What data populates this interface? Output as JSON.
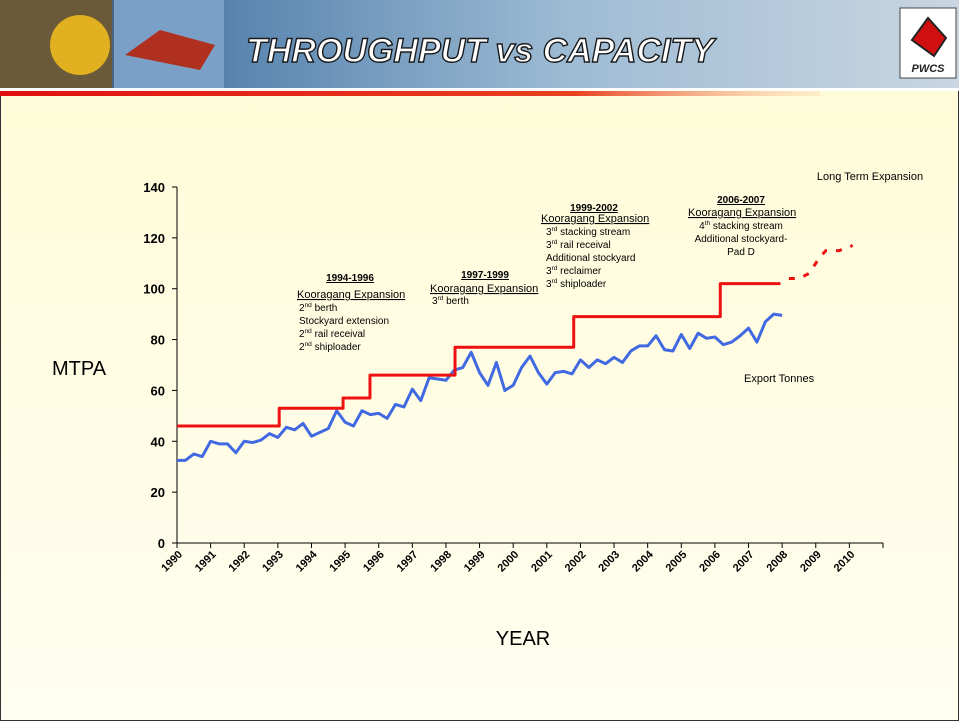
{
  "header": {
    "title": "THROUGHPUT vs CAPACITY",
    "logo": "PWCS"
  },
  "chart_data": {
    "type": "line",
    "ylabel": "MTPA",
    "xlabel": "YEAR",
    "xlim": [
      1990,
      2011
    ],
    "ylim": [
      0,
      140
    ],
    "xticks": [
      1990,
      1991,
      1992,
      1993,
      1994,
      1995,
      1996,
      1997,
      1998,
      1999,
      2000,
      2001,
      2002,
      2003,
      2004,
      2005,
      2006,
      2007,
      2008,
      2009,
      2010
    ],
    "yticks": [
      0,
      20,
      40,
      60,
      80,
      100,
      120,
      140
    ],
    "grid": false,
    "series": [
      {
        "name": "Export Tonnes",
        "color": "#4169e1",
        "x": [
          1990,
          1990.25,
          1990.5,
          1990.75,
          1991,
          1991.25,
          1991.5,
          1991.75,
          1992,
          1992.25,
          1992.5,
          1992.75,
          1993,
          1993.25,
          1993.5,
          1993.75,
          1994,
          1994.25,
          1994.5,
          1994.75,
          1995,
          1995.25,
          1995.5,
          1995.75,
          1996,
          1996.25,
          1996.5,
          1996.75,
          1997,
          1997.25,
          1997.5,
          1997.75,
          1998,
          1998.25,
          1998.5,
          1998.75,
          1999,
          1999.25,
          1999.5,
          1999.75,
          2000,
          2000.25,
          2000.5,
          2000.75,
          2001,
          2001.25,
          2001.5,
          2001.75,
          2002,
          2002.25,
          2002.5,
          2002.75,
          2003,
          2003.25,
          2003.5,
          2003.75,
          2004,
          2004.25,
          2004.5,
          2004.75,
          2005,
          2005.25,
          2005.5,
          2005.75,
          2006,
          2006.25,
          2006.5,
          2006.75,
          2007,
          2007.25,
          2007.5,
          2007.75,
          2008
        ],
        "values": [
          32.5,
          32.5,
          35,
          34,
          40,
          39,
          39,
          35.5,
          40,
          39.5,
          40.5,
          43,
          41.5,
          45.5,
          44.5,
          47,
          42,
          43.5,
          45,
          52,
          47.5,
          46,
          52,
          50.5,
          51,
          49,
          54.5,
          53.5,
          60.5,
          56,
          65,
          64.5,
          64,
          68,
          69,
          75,
          67,
          62,
          71,
          60,
          62,
          69,
          73.5,
          67,
          62.5,
          67,
          67.5,
          66.5,
          72,
          69,
          72,
          70.5,
          73,
          71,
          75.5,
          77.5,
          77.5,
          81.5,
          76,
          75.5,
          82,
          76.5,
          82.5,
          80.5,
          81,
          78,
          79,
          81.5,
          84.5,
          79,
          87,
          90,
          89.5
        ]
      },
      {
        "color": "#ee1111",
        "step": true,
        "x": [
          1990,
          1993.04,
          1994.94,
          1995.74,
          1998.27,
          2001.8,
          2006.16,
          2007.95
        ],
        "values": [
          46,
          53,
          57,
          66,
          77,
          89,
          102,
          102
        ]
      },
      {
        "color": "#ee1111",
        "dashed": true,
        "x": [
          2008.2,
          2008.5,
          2008.8,
          2009.1,
          2009.3,
          2009.7,
          2010.1
        ],
        "values": [
          104,
          104,
          106,
          112,
          115,
          115,
          117
        ]
      }
    ],
    "annotations": [
      {
        "title": "1994-1996",
        "subtitle": "Kooragang Expansion",
        "lines": [
          "2nd berth",
          "Stockyard extension",
          "2nd rail receival",
          "2nd shiploader"
        ]
      },
      {
        "title": "1997-1999",
        "subtitle": "Kooragang Expansion",
        "lines": [
          "3rd berth"
        ]
      },
      {
        "title": "1999-2002",
        "subtitle": "Kooragang Expansion",
        "lines": [
          "3rd stacking stream",
          "3rd rail receival",
          "Additional stockyard",
          "3rd reclaimer",
          "3rd shiploader"
        ]
      },
      {
        "title": "2006-2007",
        "subtitle": "Kooragang Expansion",
        "lines": [
          "4th stacking stream",
          "Additional stockyard-",
          "Pad D"
        ]
      },
      {
        "title": "Long Term Expansion"
      }
    ]
  }
}
